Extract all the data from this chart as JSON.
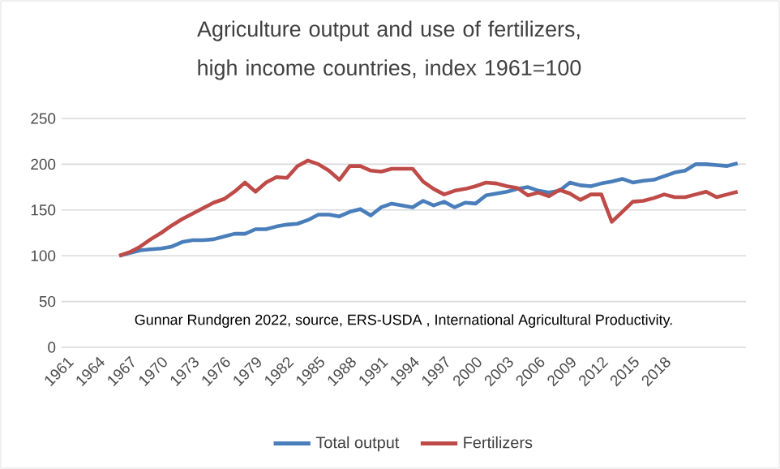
{
  "chart_data": {
    "type": "line",
    "title": "Agriculture output and use of fertilizers, high income countries, index 1961=100",
    "x": [
      1966,
      1967,
      1968,
      1969,
      1970,
      1971,
      1972,
      1973,
      1974,
      1975,
      1976,
      1977,
      1978,
      1979,
      1980,
      1981,
      1982,
      1983,
      1984,
      1985,
      1986,
      1987,
      1988,
      1989,
      1990,
      1991,
      1992,
      1993,
      1994,
      1995,
      1996,
      1997,
      1998,
      1999,
      2000,
      2001,
      2002,
      2003,
      2004,
      2005,
      2006,
      2007,
      2008,
      2009,
      2010,
      2011,
      2012,
      2013,
      2014,
      2015,
      2016,
      2017,
      2018,
      2019,
      2020,
      2021,
      2022,
      2023,
      2024,
      2025
    ],
    "series": [
      {
        "name": "Total output",
        "color": "#4a7ebb",
        "values": [
          100,
          103,
          106,
          107,
          108,
          110,
          115,
          117,
          117,
          118,
          121,
          124,
          124,
          129,
          129,
          132,
          134,
          135,
          139,
          145,
          145,
          143,
          148,
          151,
          144,
          153,
          157,
          155,
          153,
          160,
          155,
          159,
          153,
          158,
          157,
          166,
          168,
          170,
          173,
          175,
          171,
          169,
          171,
          180,
          177,
          176,
          179,
          181,
          184,
          180,
          182,
          183,
          187,
          191,
          193,
          200,
          200,
          199,
          198,
          201
        ]
      },
      {
        "name": "Fertilizers",
        "color": "#be4b48",
        "values": [
          100,
          104,
          110,
          118,
          125,
          133,
          140,
          146,
          152,
          158,
          162,
          170,
          180,
          170,
          180,
          186,
          185,
          198,
          204,
          200,
          193,
          183,
          198,
          198,
          193,
          192,
          195,
          195,
          195,
          181,
          173,
          167,
          171,
          173,
          176,
          180,
          179,
          176,
          174,
          166,
          169,
          165,
          172,
          168,
          161,
          167,
          167,
          137,
          148,
          159,
          160,
          163,
          167,
          164,
          164,
          167,
          170,
          164,
          167,
          170
        ]
      }
    ],
    "xlim": [
      1960.5,
      2025.8
    ],
    "xticks": [
      1961,
      1964,
      1967,
      1970,
      1973,
      1976,
      1979,
      1982,
      1985,
      1988,
      1991,
      1994,
      1997,
      2000,
      2003,
      2006,
      2009,
      2012,
      2015,
      2018
    ],
    "ylim": [
      0,
      250
    ],
    "yticks": [
      0,
      50,
      100,
      150,
      200,
      250
    ],
    "grid": "y",
    "legend": "bottom",
    "marker": "none",
    "line_style": "solid",
    "annotations": [
      "Gunnar Rundgren 2022, source, ERS-USDA , International Agricultural Productivity."
    ]
  }
}
